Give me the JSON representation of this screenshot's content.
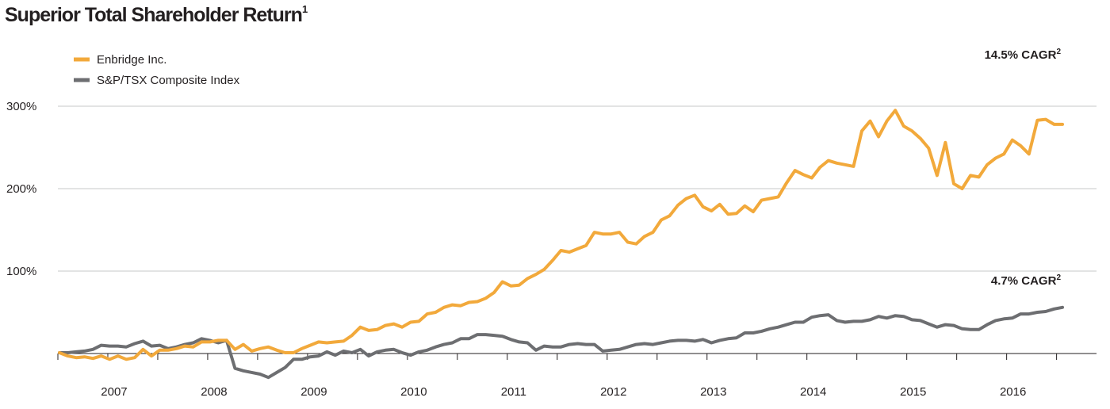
{
  "chart_data": {
    "type": "line",
    "title": "Superior Total Shareholder Return",
    "title_footnote": "1",
    "xlabel": "",
    "ylabel": "",
    "ylim": [
      0,
      300
    ],
    "x_ticks": [
      "2007",
      "2008",
      "2009",
      "2010",
      "2011",
      "2012",
      "2013",
      "2014",
      "2015",
      "2016"
    ],
    "y_ticks": [
      {
        "value": 100,
        "label": "100%"
      },
      {
        "value": 200,
        "label": "200%"
      },
      {
        "value": 300,
        "label": "300%"
      }
    ],
    "legend_position": "top-left",
    "series": [
      {
        "name": "Enbridge Inc.",
        "color": "#f2a93b",
        "annotation": "14.5% CAGR",
        "annotation_footnote": "2",
        "values": [
          1,
          -3,
          -5,
          -4,
          -6,
          -3,
          -7,
          -3,
          -7,
          -5,
          5,
          -3,
          4,
          4,
          6,
          9,
          8,
          14,
          14,
          16,
          16,
          5,
          11,
          3,
          6,
          8,
          4,
          1,
          1,
          6,
          10,
          14,
          13,
          14,
          15,
          22,
          32,
          28,
          29,
          34,
          36,
          32,
          38,
          39,
          48,
          50,
          56,
          59,
          58,
          62,
          63,
          67,
          74,
          87,
          82,
          83,
          91,
          96,
          102,
          113,
          125,
          123,
          127,
          131,
          147,
          145,
          145,
          147,
          135,
          133,
          142,
          147,
          162,
          167,
          180,
          188,
          192,
          178,
          173,
          181,
          169,
          170,
          179,
          172,
          186,
          188,
          190,
          207,
          222,
          217,
          213,
          226,
          234,
          231,
          229,
          227,
          270,
          282,
          263,
          282,
          295,
          276,
          270,
          261,
          249,
          216,
          256,
          206,
          200,
          216,
          214,
          229,
          237,
          242,
          259,
          252,
          242,
          283,
          284,
          278,
          278
        ]
      },
      {
        "name": "S&P/TSX Composite Index",
        "color": "#6d6e71",
        "annotation": "4.7% CAGR",
        "annotation_footnote": "2",
        "values": [
          1,
          1,
          2,
          3,
          5,
          10,
          9,
          9,
          8,
          12,
          15,
          9,
          10,
          6,
          8,
          11,
          13,
          18,
          16,
          13,
          16,
          -18,
          -21,
          -23,
          -25,
          -29,
          -23,
          -17,
          -7,
          -7,
          -4,
          -3,
          2,
          -2,
          3,
          1,
          5,
          -3,
          2,
          4,
          5,
          1,
          -2,
          2,
          4,
          8,
          11,
          13,
          18,
          18,
          23,
          23,
          22,
          21,
          17,
          14,
          13,
          4,
          9,
          8,
          8,
          11,
          12,
          11,
          11,
          3,
          4,
          5,
          8,
          11,
          12,
          11,
          13,
          15,
          16,
          16,
          15,
          17,
          13,
          16,
          18,
          19,
          25,
          25,
          27,
          30,
          32,
          35,
          38,
          38,
          44,
          46,
          47,
          40,
          38,
          39,
          39,
          41,
          45,
          43,
          46,
          45,
          41,
          40,
          36,
          32,
          35,
          34,
          30,
          29,
          29,
          35,
          40,
          42,
          43,
          48,
          48,
          50,
          51,
          54,
          56
        ]
      }
    ]
  }
}
